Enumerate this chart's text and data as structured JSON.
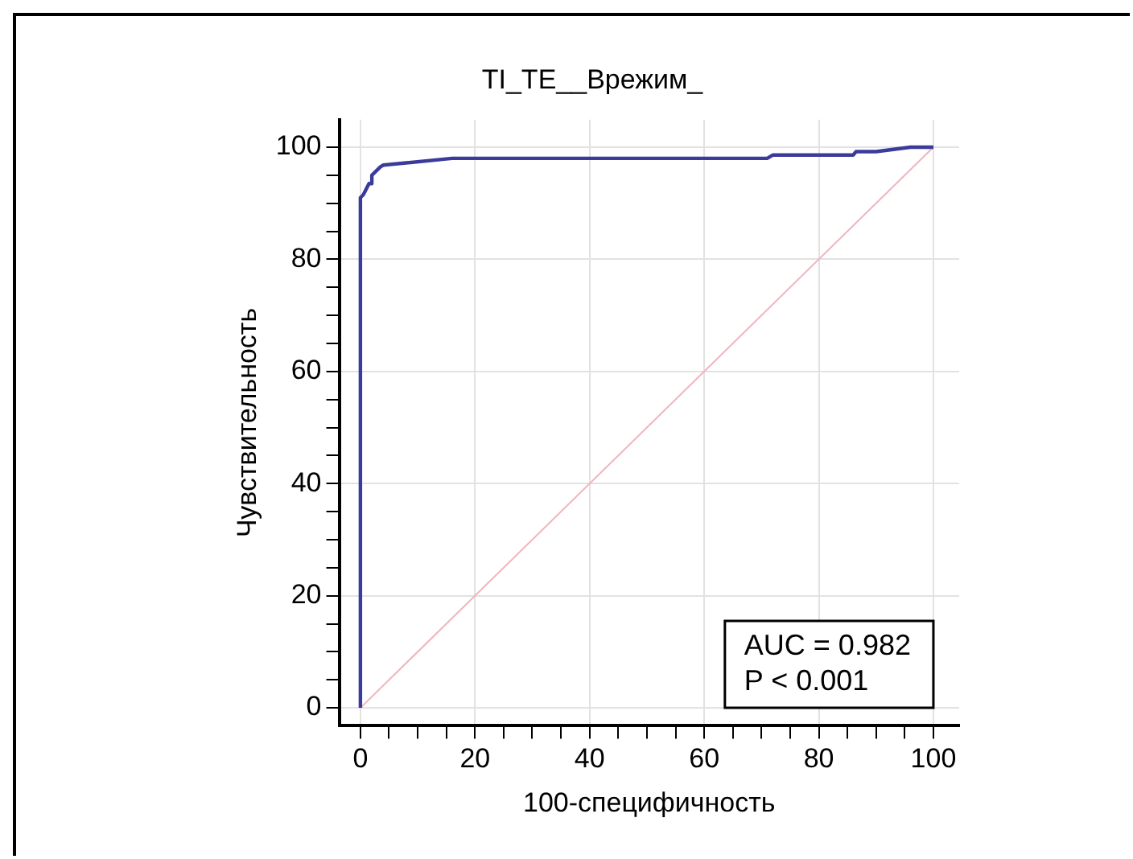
{
  "chart_data": {
    "type": "line",
    "title": "TI_TE__Врежим_",
    "xlabel": "100-специфичность",
    "ylabel": "Чувствительность",
    "annotations": [
      "AUC = 0.982",
      "P < 0.001"
    ],
    "xlim": [
      -3.7,
      104.5
    ],
    "ylim": [
      -3.2,
      104.9
    ],
    "xticks": [
      0,
      {
        "value": 5,
        "label": null
      },
      {
        "value": 10,
        "label": null
      },
      {
        "value": 15,
        "label": null
      },
      20,
      {
        "value": 25,
        "label": null
      },
      {
        "value": 30,
        "label": null
      },
      {
        "value": 35,
        "label": null
      },
      40,
      {
        "value": 45,
        "label": null
      },
      {
        "value": 50,
        "label": null
      },
      {
        "value": 55,
        "label": null
      },
      60,
      {
        "value": 65,
        "label": null
      },
      {
        "value": 70,
        "label": null
      },
      {
        "value": 75,
        "label": null
      },
      80,
      {
        "value": 85,
        "label": null
      },
      {
        "value": 90,
        "label": null
      },
      {
        "value": 95,
        "label": null
      },
      100
    ],
    "yticks": [
      0,
      {
        "value": 5,
        "label": null
      },
      {
        "value": 10,
        "label": null
      },
      {
        "value": 15,
        "label": null
      },
      20,
      {
        "value": 25,
        "label": null
      },
      {
        "value": 30,
        "label": null
      },
      {
        "value": 35,
        "label": null
      },
      40,
      {
        "value": 45,
        "label": null
      },
      {
        "value": 50,
        "label": null
      },
      {
        "value": 55,
        "label": null
      },
      60,
      {
        "value": 65,
        "label": null
      },
      {
        "value": 70,
        "label": null
      },
      {
        "value": 75,
        "label": null
      },
      80,
      {
        "value": 85,
        "label": null
      },
      {
        "value": 90,
        "label": null
      },
      {
        "value": 95,
        "label": null
      },
      100
    ],
    "grid": true,
    "legend": false,
    "marker": "none",
    "line_style": "solid",
    "series": [
      {
        "color": "#3b3b9c",
        "x": [
          0,
          0,
          0.5,
          1.5,
          2,
          2,
          3,
          3.5,
          4,
          16,
          71,
          72,
          86,
          86.5,
          90,
          96,
          100
        ],
        "values": [
          0,
          91,
          91.5,
          93.5,
          93.5,
          95,
          96,
          96.5,
          96.8,
          98,
          98,
          98.6,
          98.6,
          99.2,
          99.2,
          100,
          100
        ]
      },
      {
        "color": "#f0b4bc",
        "x": [
          0,
          100
        ],
        "values": [
          0,
          100
        ]
      }
    ]
  }
}
